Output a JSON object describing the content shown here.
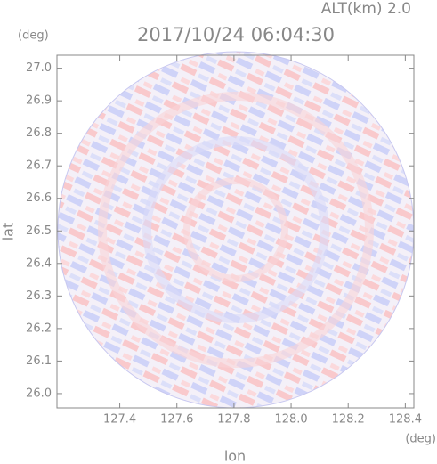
{
  "chart_data": {
    "type": "radar-ppi",
    "title": "2017/10/24 06:04:30",
    "subtitle": "ALT(km) 2.0",
    "x_label": "lon",
    "y_label": "lat",
    "x_unit": "(deg)",
    "y_unit": "(deg)",
    "xlim": [
      127.18,
      128.43
    ],
    "ylim": [
      25.956,
      27.04
    ],
    "xticks": [
      127.4,
      127.6,
      127.8,
      {
        "value": 128.0,
        "label": "128.0"
      },
      128.2,
      128.4
    ],
    "yticks": [
      {
        "value": 26.0,
        "label": "26.0"
      },
      26.1,
      26.2,
      26.3,
      26.4,
      26.5,
      26.6,
      26.7,
      26.8,
      26.9,
      {
        "value": 27.0,
        "label": "27.0"
      }
    ]
  }
}
